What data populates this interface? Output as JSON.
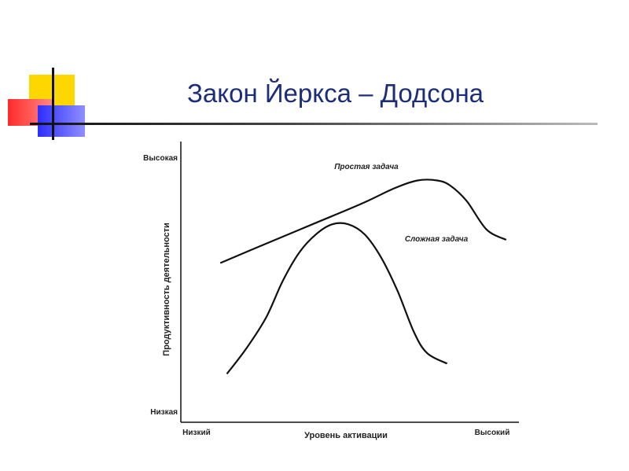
{
  "slide": {
    "title": "Закон Йеркса – Додсона"
  },
  "chart_data": {
    "type": "line",
    "xlabel": "Уровень активации",
    "ylabel": "Продуктивность деятельности",
    "x_ticks": [
      "Низкий",
      "Высокий"
    ],
    "y_ticks": [
      "Низкая",
      "Высокая"
    ],
    "xlim": [
      0,
      1
    ],
    "ylim": [
      0,
      1
    ],
    "grid": false,
    "colors": {
      "line": "#111111",
      "title": "#1c2e7a"
    },
    "series": [
      {
        "name": "Простая задача",
        "x": [
          0.12,
          0.25,
          0.4,
          0.55,
          0.65,
          0.72,
          0.78,
          0.82,
          0.87,
          0.93,
          0.99
        ],
        "y": [
          0.59,
          0.66,
          0.74,
          0.82,
          0.88,
          0.91,
          0.91,
          0.89,
          0.83,
          0.72,
          0.68
        ]
      },
      {
        "name": "Сложная задача",
        "x": [
          0.14,
          0.2,
          0.26,
          0.31,
          0.36,
          0.41,
          0.46,
          0.51,
          0.56,
          0.61,
          0.66,
          0.71,
          0.75,
          0.81
        ],
        "y": [
          0.16,
          0.26,
          0.38,
          0.52,
          0.63,
          0.7,
          0.74,
          0.74,
          0.7,
          0.61,
          0.48,
          0.32,
          0.24,
          0.2
        ]
      }
    ]
  }
}
